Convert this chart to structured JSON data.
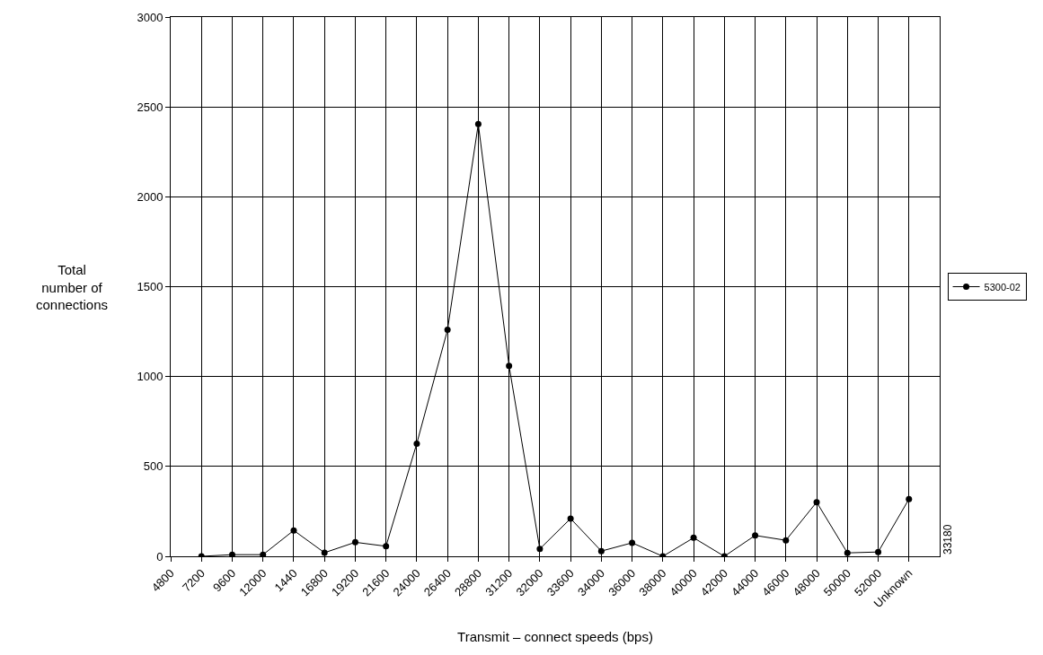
{
  "chart_data": {
    "type": "line",
    "xlabel": "Transmit – connect speeds (bps)",
    "ylabel": "Total\nnumber of\nconnections",
    "categories": [
      "4800",
      "7200",
      "9600",
      "12000",
      "1440",
      "16800",
      "19200",
      "21600",
      "24000",
      "26400",
      "28800",
      "31200",
      "32000",
      "33600",
      "34000",
      "36000",
      "38000",
      "40000",
      "42000",
      "44000",
      "46000",
      "48000",
      "50000",
      "52000",
      "Unknown",
      null
    ],
    "series": [
      {
        "name": "5300-02",
        "color": "#000000",
        "values": [
          null,
          0,
          9,
          9,
          144,
          20,
          78,
          56,
          627,
          1260,
          2405,
          1060,
          41,
          210,
          29,
          75,
          0,
          103,
          0,
          116,
          89,
          301,
          19,
          24,
          318,
          null
        ]
      }
    ],
    "ylim": [
      0,
      3000
    ],
    "yticks": [
      0,
      500,
      1000,
      1500,
      2000,
      2500,
      3000
    ],
    "grid": true,
    "legend": "right",
    "marker": "circle",
    "line_style": "solid",
    "annotations": [
      "33180"
    ]
  }
}
